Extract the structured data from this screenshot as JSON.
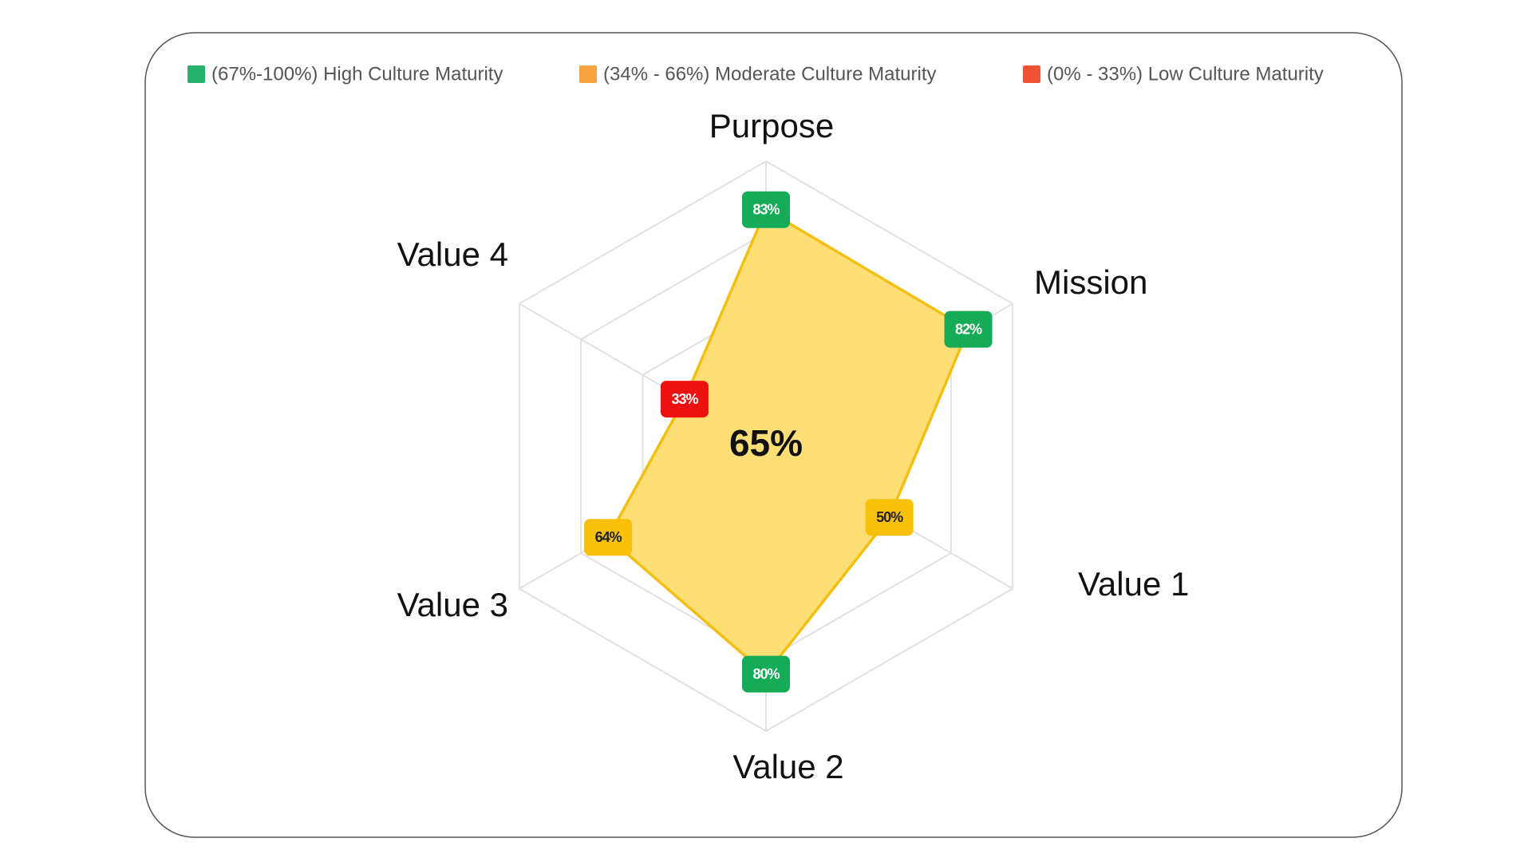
{
  "chart_data": {
    "type": "radar",
    "categories": [
      "Purpose",
      "Mission",
      "Value 1",
      "Value 2",
      "Value 3",
      "Value 4"
    ],
    "values": [
      83,
      82,
      50,
      80,
      64,
      33
    ],
    "value_labels": [
      "83%",
      "82%",
      "50%",
      "80%",
      "64%",
      "33%"
    ],
    "point_colors": [
      "#16ab57",
      "#16ab57",
      "#f7c10a",
      "#16ab57",
      "#f7c10a",
      "#ee1111"
    ],
    "color": "#f5be12",
    "fill_color": "#fddd6e",
    "center_label": "65%",
    "ylim": [
      0,
      100
    ],
    "yticks": [
      25,
      50,
      75,
      100
    ],
    "grid": true,
    "legend": [
      {
        "label": "(67%-100%) High Culture Maturity",
        "color": "#27b26b"
      },
      {
        "label": "(34% - 66%) Moderate Culture Maturity",
        "color": "#f7a440"
      },
      {
        "label": "(0% - 33%) Low Culture Maturity",
        "color": "#ef5335"
      }
    ]
  }
}
